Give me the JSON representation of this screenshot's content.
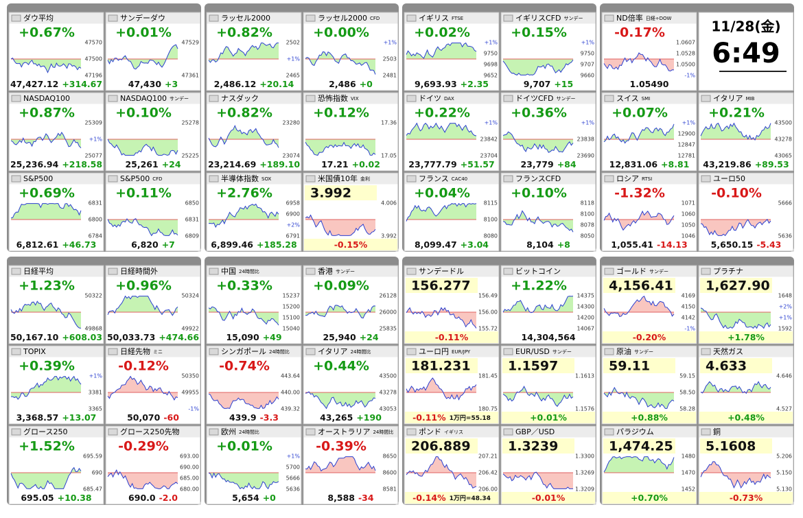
{
  "panels": [
    {
      "tiles": [
        {
          "name": "ダウ平均",
          "head": "+0.67%",
          "foot": [
            "47,427.12",
            "+314.67"
          ],
          "axis": [
            "47570",
            "47500",
            "47196"
          ]
        },
        {
          "name": "サンデーダウ",
          "head": "+0.01%",
          "foot": [
            "47,430",
            "+3"
          ],
          "axis": [
            "47529",
            "47361"
          ]
        },
        {
          "name": "NASDAQ100",
          "head": "+0.87%",
          "foot": [
            "25,236.94",
            "+218.58"
          ],
          "axis": [
            "25309",
            "+1%",
            "25077"
          ]
        },
        {
          "name": "NASDAQ100",
          "sub": "サンデー",
          "head": "+0.10%",
          "foot": [
            "25,261",
            "+24"
          ],
          "axis": [
            "25278",
            "25225"
          ]
        },
        {
          "name": "S&P500",
          "head": "+0.69%",
          "foot": [
            "6,812.61",
            "+46.73"
          ],
          "axis": [
            "6831",
            "6800",
            "6784"
          ]
        },
        {
          "name": "S&P500",
          "sub": "CFD",
          "head": "+0.11%",
          "foot": [
            "6,820",
            "+7"
          ],
          "axis": [
            "6850",
            "6831",
            "6809"
          ]
        }
      ]
    },
    {
      "tiles": [
        {
          "name": "ラッセル2000",
          "head": "+0.82%",
          "foot": [
            "2,486.12",
            "+20.14"
          ],
          "axis": [
            "2502",
            "+1%",
            "2465"
          ]
        },
        {
          "name": "ラッセル2000",
          "sub": "CFD",
          "head": "+0.00%",
          "foot": [
            "2,486",
            "+0"
          ],
          "axis": [
            "+1%",
            "2503",
            "2481"
          ]
        },
        {
          "name": "ナスダック",
          "head": "+0.82%",
          "foot": [
            "23,214.69",
            "+189.10"
          ],
          "axis": [
            "23280",
            "23074"
          ]
        },
        {
          "name": "恐怖指数",
          "sub": "VIX",
          "head": "+0.12%",
          "foot": [
            "17.21",
            "+0.02"
          ],
          "axis": [
            "17.36",
            "17.05"
          ]
        },
        {
          "name": "半導体指数",
          "sub": "SOX",
          "head": "+2.76%",
          "foot": [
            "6,899.46",
            "+185.28"
          ],
          "axis": [
            "6958",
            "6900",
            "+2%",
            "6791"
          ]
        },
        {
          "name": "米国債10年",
          "sub": "金利",
          "head": "3.992",
          "foot": [
            "-0.15%"
          ],
          "axis": [
            "4.006",
            "3.992"
          ]
        }
      ]
    },
    {
      "tiles": [
        {
          "name": "イギリス",
          "sub": "FTSE",
          "head": "+0.02%",
          "foot": [
            "9,693.93",
            "+2.35"
          ],
          "axis": [
            "+1%",
            "9750",
            "9698",
            "9652"
          ]
        },
        {
          "name": "イギリスCFD",
          "sub": "サンデー",
          "head": "+0.15%",
          "foot": [
            "9,707",
            "+15"
          ],
          "axis": [
            "+1%",
            "9750",
            "9707",
            "9660"
          ]
        },
        {
          "name": "ドイツ",
          "sub": "DAX",
          "head": "+0.22%",
          "foot": [
            "23,777.79",
            "+51.57"
          ],
          "axis": [
            "+1%",
            "23842",
            "23704"
          ]
        },
        {
          "name": "ドイツCFD",
          "sub": "サンデー",
          "head": "+0.36%",
          "foot": [
            "23,779",
            "+84"
          ],
          "axis": [
            "+1%",
            "23838",
            "23690"
          ]
        },
        {
          "name": "フランス",
          "sub": "CAC40",
          "head": "+0.04%",
          "foot": [
            "8,099.47",
            "+3.04"
          ],
          "axis": [
            "8115",
            "8100",
            "8080"
          ]
        },
        {
          "name": "フランスCFD",
          "head": "+0.10%",
          "foot": [
            "8,104",
            "+8"
          ],
          "axis": [
            "8118",
            "8100",
            "8078",
            "8050"
          ]
        }
      ]
    },
    {
      "tiles": [
        {
          "name": "ND倍率",
          "sub": "日経÷DOW",
          "head": "-0.17%",
          "foot": [
            "1.05490"
          ],
          "axis": [
            "1.0607",
            "1.0528",
            "1.0500",
            "-1%"
          ]
        },
        {
          "date": "11/28(金)",
          "time": "6:49"
        },
        {
          "name": "スイス",
          "sub": "SMI",
          "head": "+0.07%",
          "foot": [
            "12,831.06",
            "+8.81"
          ],
          "axis": [
            "+1%",
            "12900",
            "12847",
            "12781"
          ]
        },
        {
          "name": "イタリア",
          "sub": "MIB",
          "head": "+0.21%",
          "foot": [
            "43,219.86",
            "+89.53"
          ],
          "axis": [
            "43500",
            "43278",
            "43065"
          ]
        },
        {
          "name": "ロシア",
          "sub": "RTSI",
          "head": "-1.32%",
          "foot": [
            "1,055.41",
            "-14.13"
          ],
          "axis": [
            "1071",
            "1060",
            "1050",
            "1046"
          ]
        },
        {
          "name": "ユーロ50",
          "head": "-0.10%",
          "foot": [
            "5,650.15",
            "-5.43"
          ],
          "axis": [
            "5666",
            "5636"
          ]
        }
      ]
    },
    {
      "tiles": [
        {
          "name": "日経平均",
          "head": "+1.23%",
          "foot": [
            "50,167.10",
            "+608.03"
          ],
          "axis": [
            "50322",
            "49868"
          ]
        },
        {
          "name": "日経時間外",
          "head": "+0.96%",
          "foot": [
            "50,033.73",
            "+474.66"
          ],
          "axis": [
            "50324",
            "49922"
          ]
        },
        {
          "name": "TOPIX",
          "head": "+0.39%",
          "foot": [
            "3,368.57",
            "+13.07"
          ],
          "axis": [
            "+1%",
            "3381",
            "3365"
          ]
        },
        {
          "name": "日経先物",
          "sub": "ミニ",
          "head": "-0.12%",
          "foot": [
            "50,070",
            "-60"
          ],
          "axis": [
            "50350",
            "49955",
            "-1%"
          ]
        },
        {
          "name": "グロース250",
          "head": "+1.52%",
          "foot": [
            "695.05",
            "+10.38"
          ],
          "axis": [
            "695.59",
            "690",
            "685.47"
          ]
        },
        {
          "name": "グロース250先物",
          "head": "-0.29%",
          "foot": [
            "690.0",
            "-2.0"
          ],
          "axis": [
            "693.00",
            "690.00",
            "685.00",
            "680.00"
          ]
        }
      ]
    },
    {
      "tiles": [
        {
          "name": "中国",
          "sub": "24時間比",
          "head": "+0.33%",
          "foot": [
            "15,090",
            "+49"
          ],
          "axis": [
            "15237",
            "15200",
            "15100",
            "15040"
          ]
        },
        {
          "name": "香港",
          "sub": "サンデー",
          "head": "+0.09%",
          "foot": [
            "25,940",
            "+24"
          ],
          "axis": [
            "26128",
            "26000",
            "25835"
          ]
        },
        {
          "name": "シンガポール",
          "sub": "24時間比",
          "head": "-0.74%",
          "foot": [
            "439.9",
            "-3.3"
          ],
          "axis": [
            "443.64",
            "440.00",
            "439.32"
          ]
        },
        {
          "name": "イタリア",
          "sub": "24時間比",
          "head": "+0.44%",
          "foot": [
            "43,265",
            "+190"
          ],
          "axis": [
            "43500",
            "43278",
            "43053"
          ]
        },
        {
          "name": "欧州",
          "sub": "24時間比",
          "head": "+0.01%",
          "foot": [
            "5,654",
            "+0"
          ],
          "axis": [
            "+1%",
            "5700",
            "5666",
            "5636"
          ]
        },
        {
          "name": "オーストラリア",
          "sub": "24時間比",
          "head": "-0.39%",
          "foot": [
            "8,588",
            "-34"
          ],
          "axis": [
            "8650",
            "8600",
            "8581"
          ]
        }
      ]
    },
    {
      "tiles": [
        {
          "name": "サンデードル",
          "head": "156.277",
          "foot": [
            "-0.11%"
          ],
          "axis": [
            "156.49",
            "156.00",
            "155.72"
          ]
        },
        {
          "name": "ビットコイン",
          "head": "+1.22%",
          "foot": [
            "14,304,564"
          ],
          "axis": [
            "14375",
            "14300",
            "14200",
            "14067"
          ]
        },
        {
          "name": "ユーロ円",
          "sub": "EUR/JPY",
          "head": "181.231",
          "foot": [
            "-0.11%",
            "1万円=55.18"
          ],
          "axis": [
            "181.45",
            "180.75"
          ]
        },
        {
          "name": "EUR/USD",
          "sub": "サンデー",
          "head": "1.1597",
          "foot": [
            "+0.01%"
          ],
          "axis": [
            "1.1613",
            "1.1576"
          ]
        },
        {
          "name": "ポンド",
          "sub": "イギリス",
          "head": "206.889",
          "foot": [
            "-0.14%",
            "1万円=48.34"
          ],
          "axis": [
            "207.21",
            "206.42",
            "206.00"
          ]
        },
        {
          "name": "GBP／USD",
          "head": "1.3239",
          "foot": [
            "-0.01%"
          ],
          "axis": [
            "1.3300",
            "1.3269",
            "1.3209"
          ]
        }
      ]
    },
    {
      "tiles": [
        {
          "name": "ゴールド",
          "sub": "サンデー",
          "head": "4,156.41",
          "foot": [
            "-0.20%"
          ],
          "axis": [
            "4169",
            "4150",
            "4142",
            "-1%"
          ]
        },
        {
          "name": "プラチナ",
          "head": "1,627.90",
          "foot": [
            "+1.78%"
          ],
          "axis": [
            "1648",
            "+2%",
            "+1%",
            "1592"
          ]
        },
        {
          "name": "原油",
          "sub": "サンデー",
          "head": "59.11",
          "foot": [
            "+0.88%"
          ],
          "axis": [
            "59.15",
            "58.50",
            "58.28"
          ]
        },
        {
          "name": "天然ガス",
          "head": "4.633",
          "foot": [
            "+0.48%"
          ],
          "axis": [
            "4.646",
            "4.527"
          ]
        },
        {
          "name": "パラジウム",
          "head": "1,474.25",
          "foot": [
            "+0.70%"
          ],
          "axis": [
            "1480",
            "1470",
            "1452"
          ]
        },
        {
          "name": "銅",
          "head": "5.1608",
          "foot": [
            "-0.73%"
          ],
          "axis": [
            "5.206",
            "5.150",
            "5.130"
          ]
        }
      ]
    }
  ]
}
